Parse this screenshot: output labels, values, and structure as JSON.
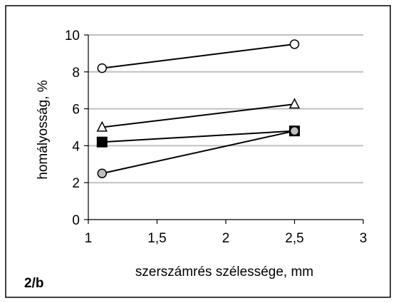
{
  "chart_data": {
    "type": "line",
    "panel_label": "2/b",
    "xlabel": "szerszámrés szélessége, mm",
    "ylabel": "homályosság, %",
    "xlim": [
      1,
      3
    ],
    "ylim": [
      0,
      10
    ],
    "x_ticks": [
      "1",
      "1,5",
      "2",
      "2,5",
      "3"
    ],
    "y_ticks": [
      "0",
      "2",
      "4",
      "6",
      "8",
      "10"
    ],
    "grid": "horizontal",
    "legend": "none",
    "series": [
      {
        "marker": "circle-open",
        "color": "#000000",
        "fill": "#ffffff",
        "x": [
          1.1,
          2.5
        ],
        "y": [
          8.2,
          9.5
        ]
      },
      {
        "marker": "triangle-open",
        "color": "#000000",
        "fill": "#ffffff",
        "x": [
          1.1,
          2.5
        ],
        "y": [
          5.0,
          6.25
        ]
      },
      {
        "marker": "square-filled",
        "color": "#000000",
        "fill": "#000000",
        "x": [
          1.1,
          2.5
        ],
        "y": [
          4.2,
          4.8
        ]
      },
      {
        "marker": "circle-gray",
        "color": "#000000",
        "fill": "#c0c0c0",
        "x": [
          1.1,
          2.5
        ],
        "y": [
          2.5,
          4.8
        ]
      }
    ]
  }
}
